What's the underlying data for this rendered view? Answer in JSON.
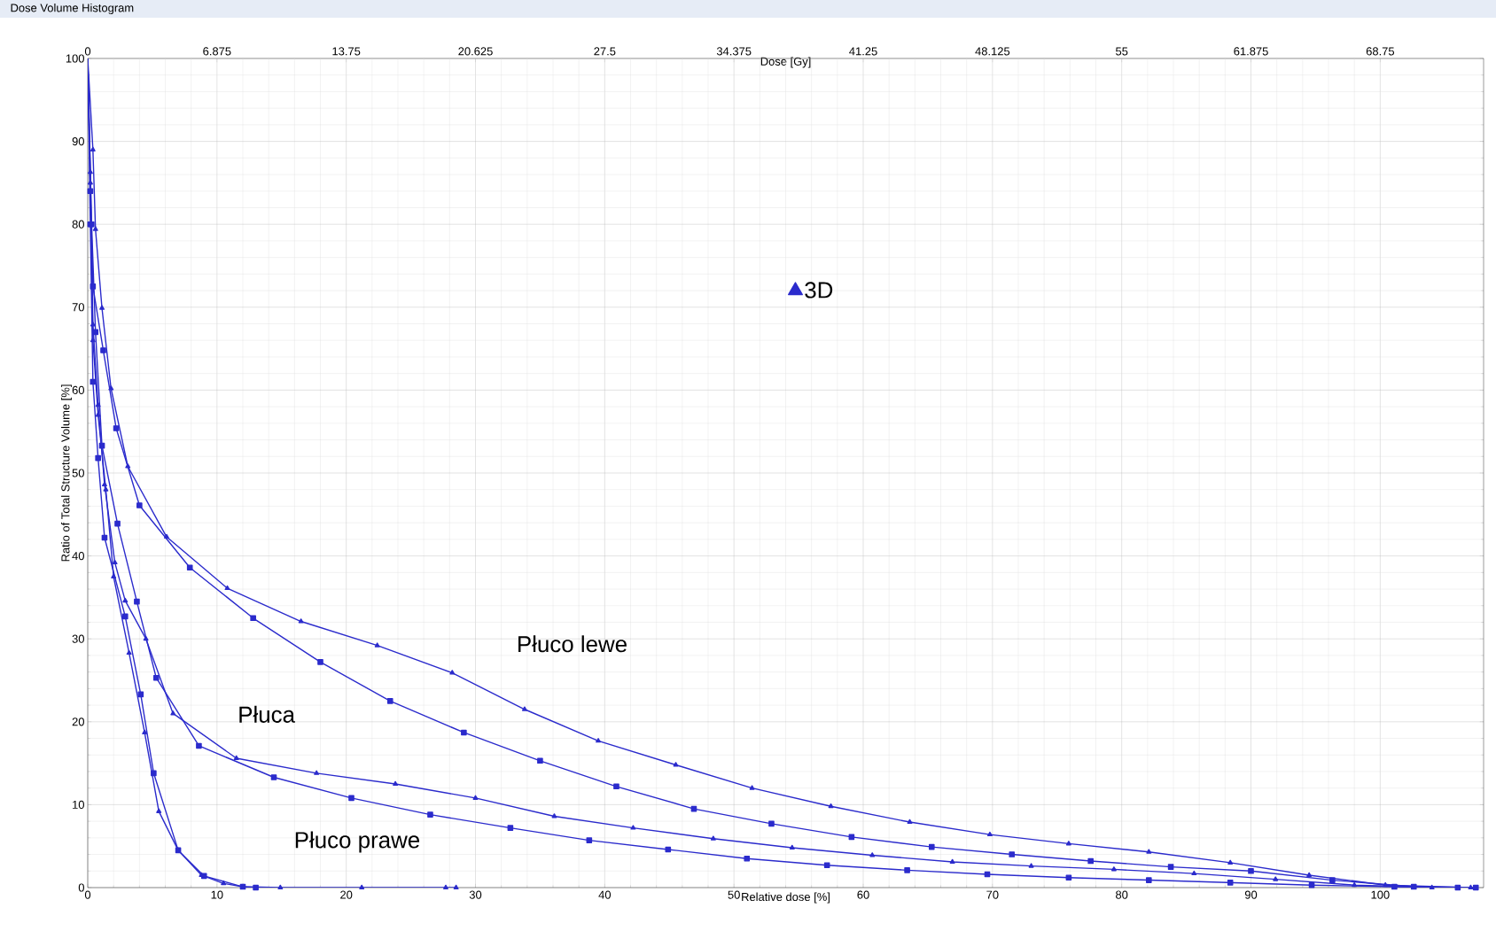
{
  "chart_data": {
    "type": "line",
    "title": "Dose Volume Histogram",
    "xlabel": "Relative dose [%]",
    "x2label": "Dose [Gy]",
    "ylabel": "Ratio of Total Structure Volume [%]",
    "xlim": [
      0,
      108
    ],
    "xticks": [
      0,
      10,
      20,
      30,
      40,
      50,
      60,
      70,
      80,
      90,
      100
    ],
    "x2lim": [
      0,
      74.25
    ],
    "x2ticks": [
      0,
      6.875,
      13.75,
      20.625,
      27.5,
      34.375,
      41.25,
      48.125,
      55,
      61.875,
      68.75
    ],
    "ylim": [
      0,
      100
    ],
    "yticks": [
      0,
      10,
      20,
      30,
      40,
      50,
      60,
      70,
      80,
      90,
      100
    ],
    "grid": true,
    "legend": "top",
    "line_style": "solid",
    "series": [
      {
        "name": "3D",
        "color": "#2b2bcc",
        "marker": "triangle",
        "x": [
          0,
          0.4,
          0.6,
          1.1,
          1.8,
          3.1,
          6.1,
          10.8,
          16.5,
          22.4,
          28.2,
          33.8,
          39.5,
          45.5,
          51.4,
          57.5,
          63.6,
          69.8,
          75.9,
          82.1,
          88.4,
          94.5,
          100.4,
          107
        ],
        "values": [
          100,
          89,
          79.4,
          69.9,
          60.2,
          50.8,
          42.3,
          36.1,
          32.1,
          29.2,
          25.9,
          21.5,
          17.7,
          14.8,
          12.0,
          9.8,
          7.9,
          6.4,
          5.3,
          4.3,
          3.0,
          1.5,
          0.3,
          0
        ]
      },
      {
        "color": "#2b2bcc",
        "marker": "square",
        "x": [
          0,
          0.2,
          0.4,
          1.2,
          2.2,
          4.0,
          7.9,
          12.8,
          18.0,
          23.4,
          29.1,
          35.0,
          40.9,
          46.9,
          52.9,
          59.1,
          65.3,
          71.5,
          77.6,
          83.8,
          90.0,
          96.3,
          102.6,
          107.4
        ],
        "values": [
          100,
          84,
          72.5,
          64.8,
          55.4,
          46.1,
          38.6,
          32.5,
          27.2,
          22.5,
          18.7,
          15.3,
          12.2,
          9.5,
          7.7,
          6.1,
          4.9,
          4.0,
          3.2,
          2.5,
          2.0,
          0.9,
          0.1,
          0
        ]
      },
      {
        "color": "#2b2bcc",
        "marker": "triangle",
        "x": [
          0,
          0.2,
          0.4,
          0.8,
          1.3,
          2.1,
          2.9,
          4.5,
          6.6,
          11.5,
          17.7,
          23.8,
          30.0,
          36.1,
          42.2,
          48.4,
          54.5,
          60.7,
          66.9,
          73.0,
          79.4,
          85.6,
          91.9,
          98.0,
          104
        ],
        "values": [
          100,
          86.3,
          67.9,
          58.2,
          48.6,
          39.2,
          34.6,
          30.0,
          21.0,
          15.6,
          13.8,
          12.5,
          10.8,
          8.6,
          7.2,
          5.9,
          4.8,
          3.9,
          3.1,
          2.6,
          2.2,
          1.7,
          1.0,
          0.3,
          0
        ]
      },
      {
        "color": "#2b2bcc",
        "marker": "square",
        "x": [
          0,
          0.3,
          0.6,
          1.1,
          2.3,
          3.8,
          5.3,
          8.6,
          14.4,
          20.4,
          26.5,
          32.7,
          38.8,
          44.9,
          51.0,
          57.2,
          63.4,
          69.6,
          75.9,
          82.1,
          88.4,
          94.7,
          101.1,
          106
        ],
        "values": [
          100,
          80,
          67,
          53.3,
          43.9,
          34.5,
          25.3,
          17.1,
          13.3,
          10.8,
          8.8,
          7.2,
          5.7,
          4.6,
          3.5,
          2.7,
          2.1,
          1.6,
          1.2,
          0.9,
          0.6,
          0.3,
          0.1,
          0
        ]
      },
      {
        "color": "#2b2bcc",
        "marker": "triangle",
        "x": [
          0,
          0.2,
          0.4,
          0.8,
          1.4,
          2.0,
          3.2,
          4.4,
          5.5,
          7.0,
          8.8,
          10.5,
          12,
          14.9,
          21.2,
          27.7,
          28.5
        ],
        "values": [
          100,
          85,
          66,
          57,
          48,
          37.5,
          28.3,
          18.7,
          9.2,
          4.5,
          1.5,
          0.5,
          0.1,
          0,
          0,
          0,
          0
        ]
      },
      {
        "color": "#2b2bcc",
        "marker": "square",
        "x": [
          0,
          0.2,
          0.4,
          0.8,
          1.3,
          2.9,
          4.1,
          5.1,
          7.0,
          9,
          12,
          13
        ],
        "values": [
          100,
          80,
          61,
          51.8,
          42.2,
          32.7,
          23.3,
          13.8,
          4.5,
          1.4,
          0.1,
          0
        ]
      }
    ],
    "annotations": [
      "Płuco lewe",
      "Płuca",
      "Płuco prawe"
    ]
  }
}
